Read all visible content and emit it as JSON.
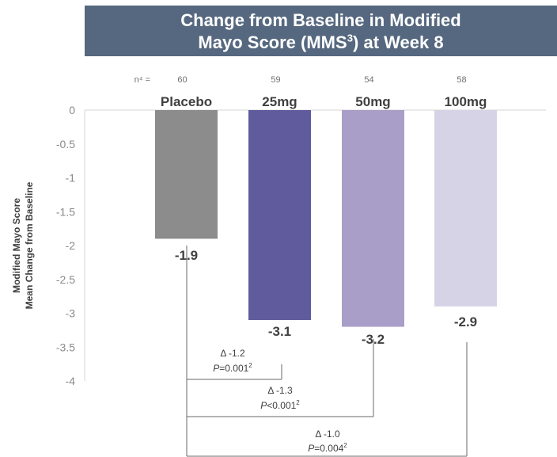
{
  "title": {
    "line1": "Change from Baseline in Modified",
    "line2_prefix": "Mayo Score (MMS",
    "line2_sup": "3",
    "line2_suffix": ") at Week 8"
  },
  "n_label": "n⁴ =",
  "chart_data": {
    "type": "bar",
    "categories": [
      "Placebo",
      "25mg",
      "50mg",
      "100mg"
    ],
    "n": [
      "60",
      "59",
      "54",
      "58"
    ],
    "values": [
      -1.9,
      -3.1,
      -3.2,
      -2.9
    ],
    "value_labels": [
      "-1.9",
      "-3.1",
      "-3.2",
      "-2.9"
    ],
    "colors": [
      "#8c8c8c",
      "#5f5b9c",
      "#a99ec8",
      "#d6d3e6"
    ],
    "ylabel_line1": "Modified Mayo Score",
    "ylabel_line2": "Mean Change from Baseline",
    "ylim": [
      -4,
      0
    ],
    "yticks": [
      "0",
      "-0.5",
      "-1",
      "-1.5",
      "-2",
      "-2.5",
      "-3",
      "-3.5",
      "-4"
    ],
    "comparisons": [
      {
        "from": "Placebo",
        "to": "25mg",
        "delta": "Δ -1.2",
        "p_italic": "P",
        "p_value": "=0.001",
        "p_sup": "2"
      },
      {
        "from": "Placebo",
        "to": "50mg",
        "delta": "Δ -1.3",
        "p_italic": "P",
        "p_value": "<0.001",
        "p_sup": "2"
      },
      {
        "from": "Placebo",
        "to": "100mg",
        "delta": "Δ -1.0",
        "p_italic": "P",
        "p_value": "=0.004",
        "p_sup": "2"
      }
    ]
  }
}
